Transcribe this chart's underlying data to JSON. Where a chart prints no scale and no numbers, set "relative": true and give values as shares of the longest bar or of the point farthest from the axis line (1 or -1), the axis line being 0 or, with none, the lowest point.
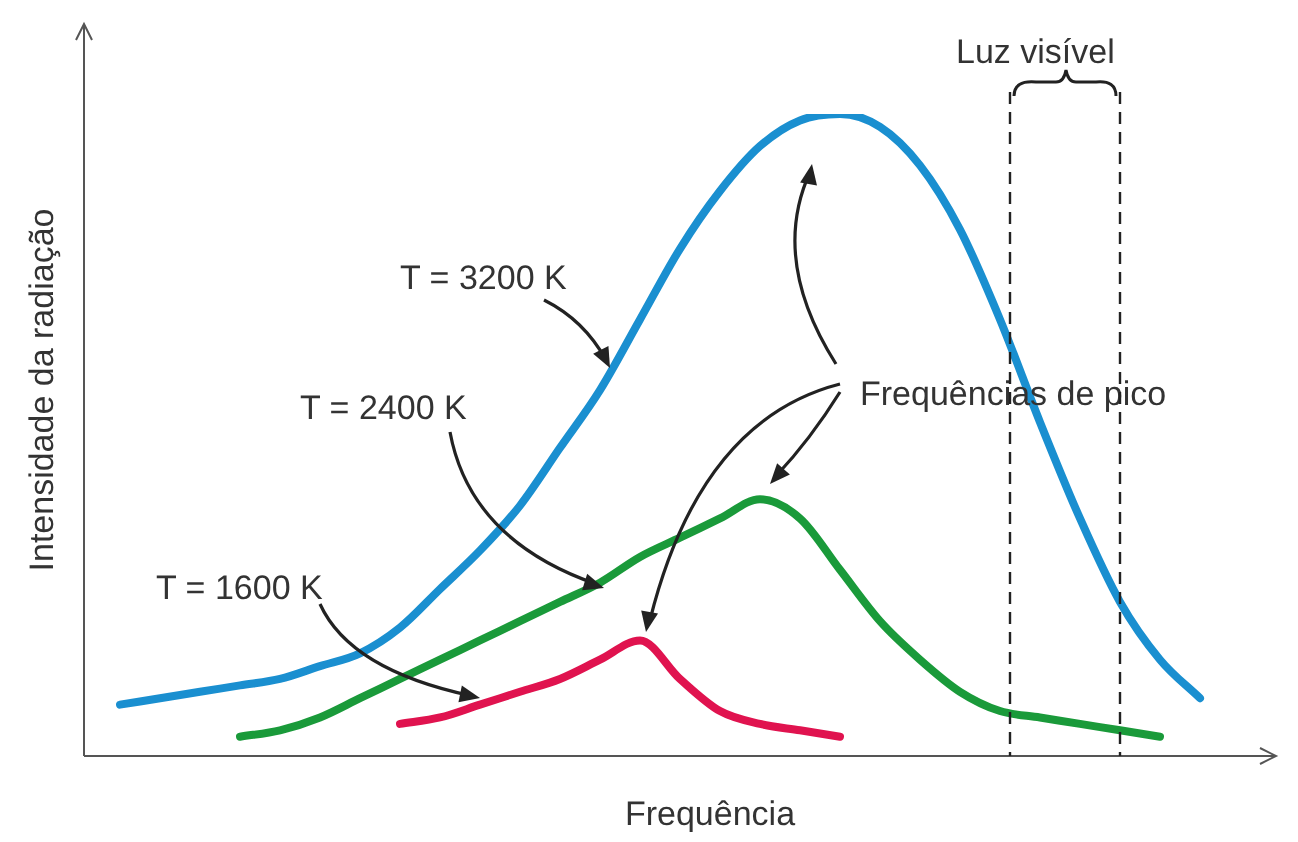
{
  "chart_data": {
    "type": "line",
    "relative": true,
    "xlabel": "Frequência",
    "ylabel": "Intensidade da radiação",
    "tick_labels": false,
    "legend": false,
    "marker": "none",
    "line_style": "solid",
    "categories": [
      null,
      null,
      null,
      null,
      null,
      null,
      null,
      null,
      null,
      null,
      null,
      null,
      null,
      null,
      null,
      null,
      null,
      null,
      null,
      null,
      null,
      null,
      null,
      null,
      null,
      null,
      null,
      null,
      null
    ],
    "series": [
      {
        "name": "T = 3200 K",
        "color": "#1a8fd0",
        "values": [
          0.08,
          0.09,
          0.1,
          0.11,
          0.12,
          0.14,
          0.16,
          0.2,
          0.26,
          0.32,
          0.39,
          0.48,
          0.57,
          0.68,
          0.79,
          0.88,
          0.95,
          0.99,
          1,
          0.98,
          0.92,
          0.82,
          0.68,
          0.52,
          0.37,
          0.24,
          0.15,
          0.09,
          null
        ]
      },
      {
        "name": "T = 2400 K",
        "color": "#1a9a3a",
        "values": [
          null,
          null,
          null,
          0.03,
          0.04,
          0.06,
          0.09,
          0.12,
          0.15,
          0.18,
          0.21,
          0.24,
          0.27,
          0.31,
          0.34,
          0.37,
          0.4,
          0.37,
          0.29,
          0.21,
          0.15,
          0.1,
          0.07,
          0.06,
          0.05,
          0.04,
          0.03,
          null,
          null
        ]
      },
      {
        "name": "T = 1600 K",
        "color": "#e0134f",
        "values": [
          null,
          null,
          null,
          null,
          null,
          null,
          null,
          0.05,
          0.06,
          0.08,
          0.1,
          0.12,
          0.15,
          0.18,
          0.12,
          0.07,
          0.05,
          0.04,
          0.03,
          null,
          null,
          null,
          null,
          null,
          null,
          null,
          null,
          null,
          null
        ]
      }
    ],
    "annotations": [
      "Frequências de pico",
      "Luz visível"
    ]
  }
}
